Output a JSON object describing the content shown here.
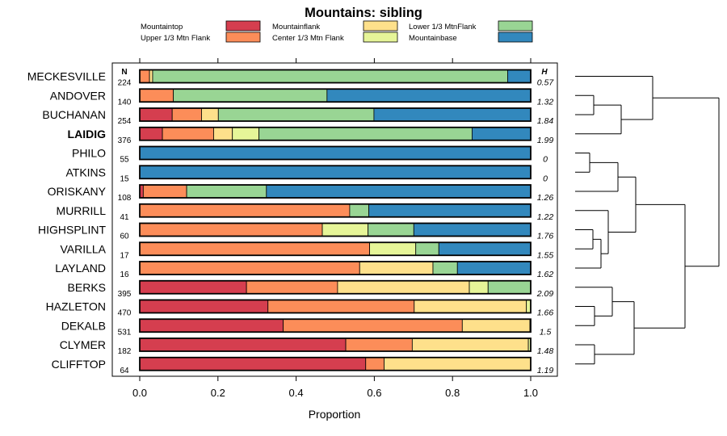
{
  "chart_data": {
    "type": "bar",
    "orientation": "horizontal",
    "stacked": true,
    "title": "Mountains: sibling",
    "xlabel": "Proportion",
    "xlim": [
      0,
      1
    ],
    "xticks": [
      "0.0",
      "0.2",
      "0.4",
      "0.6",
      "0.8",
      "1.0"
    ],
    "n_header": "N",
    "h_header": "H",
    "highlighted": "LAIDIG",
    "legend": [
      {
        "name": "Mountaintop",
        "color": "#d53e4f"
      },
      {
        "name": "Upper 1/3 Mtn Flank",
        "color": "#fc8d59"
      },
      {
        "name": "Mountainflank",
        "color": "#fee08b"
      },
      {
        "name": "Center 1/3 Mtn Flank",
        "color": "#e6f598"
      },
      {
        "name": "Lower 1/3 MtnFlank",
        "color": "#99d594"
      },
      {
        "name": "Mountainbase",
        "color": "#3288bd"
      }
    ],
    "rows": [
      {
        "label": "MECKESVILLE",
        "n": "224",
        "h": "0.57",
        "values": [
          0.0,
          0.025,
          0.008,
          0.0,
          0.908,
          0.059
        ]
      },
      {
        "label": "ANDOVER",
        "n": "140",
        "h": "1.32",
        "values": [
          0.0,
          0.086,
          0.0,
          0.0,
          0.393,
          0.521
        ]
      },
      {
        "label": "BUCHANAN",
        "n": "254",
        "h": "1.84",
        "values": [
          0.083,
          0.075,
          0.043,
          0.0,
          0.398,
          0.401
        ]
      },
      {
        "label": "LAIDIG",
        "n": "376",
        "h": "1.99",
        "values": [
          0.058,
          0.131,
          0.048,
          0.068,
          0.545,
          0.15
        ]
      },
      {
        "label": "PHILO",
        "n": "55",
        "h": "0",
        "values": [
          0.0,
          0.0,
          0.0,
          0.0,
          0.0,
          1.0
        ]
      },
      {
        "label": "ATKINS",
        "n": "15",
        "h": "0",
        "values": [
          0.0,
          0.0,
          0.0,
          0.0,
          0.0,
          1.0
        ]
      },
      {
        "label": "ORISKANY",
        "n": "108",
        "h": "1.26",
        "values": [
          0.009,
          0.111,
          0.0,
          0.0,
          0.204,
          0.676
        ]
      },
      {
        "label": "MURRILL",
        "n": "41",
        "h": "1.22",
        "values": [
          0.0,
          0.537,
          0.0,
          0.0,
          0.049,
          0.414
        ]
      },
      {
        "label": "HIGHSPLINT",
        "n": "60",
        "h": "1.76",
        "values": [
          0.0,
          0.467,
          0.0,
          0.117,
          0.117,
          0.299
        ]
      },
      {
        "label": "VARILLA",
        "n": "17",
        "h": "1.55",
        "values": [
          0.0,
          0.588,
          0.0,
          0.118,
          0.059,
          0.235
        ]
      },
      {
        "label": "LAYLAND",
        "n": "16",
        "h": "1.62",
        "values": [
          0.0,
          0.5625,
          0.1875,
          0.0,
          0.0625,
          0.1875
        ]
      },
      {
        "label": "BERKS",
        "n": "395",
        "h": "2.09",
        "values": [
          0.273,
          0.233,
          0.337,
          0.048,
          0.109,
          0.0
        ]
      },
      {
        "label": "HAZLETON",
        "n": "470",
        "h": "1.66",
        "values": [
          0.328,
          0.374,
          0.287,
          0.011,
          0.0,
          0.0
        ]
      },
      {
        "label": "DEKALB",
        "n": "531",
        "h": "1.5",
        "values": [
          0.367,
          0.458,
          0.173,
          0.002,
          0.0,
          0.0
        ]
      },
      {
        "label": "CLYMER",
        "n": "182",
        "h": "1.48",
        "values": [
          0.527,
          0.17,
          0.297,
          0.006,
          0.0,
          0.0
        ]
      },
      {
        "label": "CLIFFTOP",
        "n": "64",
        "h": "1.19",
        "values": [
          0.578,
          0.047,
          0.375,
          0.0,
          0.0,
          0.0
        ]
      }
    ]
  }
}
